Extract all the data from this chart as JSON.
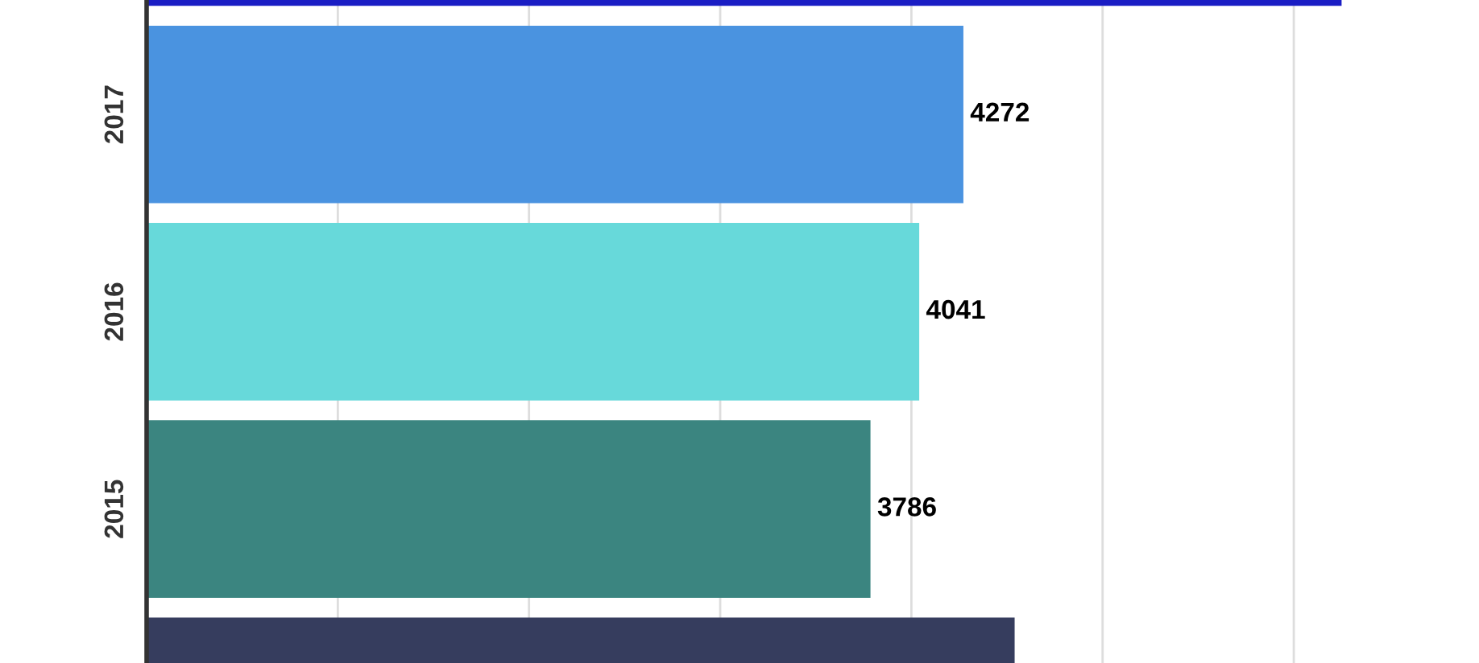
{
  "chart_data": {
    "type": "bar",
    "orientation": "horizontal",
    "categories": [
      null,
      "2017",
      "2016",
      "2015",
      null
    ],
    "values": [
      6250,
      4272,
      4041,
      3786,
      4540
    ],
    "colors": [
      "#1a1dc4",
      "#4a93e0",
      "#67d9da",
      "#3b8580",
      "#363d5e"
    ],
    "value_labels": [
      null,
      "4272",
      "4041",
      "3786",
      null
    ],
    "ref_lines": [
      {
        "axis": "x",
        "value": 1000,
        "color": "#dddddd"
      },
      {
        "axis": "x",
        "value": 2000,
        "color": "#dddddd"
      },
      {
        "axis": "x",
        "value": 3000,
        "color": "#dddddd"
      },
      {
        "axis": "x",
        "value": 4000,
        "color": "#dddddd"
      },
      {
        "axis": "x",
        "value": 5000,
        "color": "#dddddd"
      },
      {
        "axis": "x",
        "value": 6000,
        "color": "#dddddd"
      }
    ],
    "legend": false
  }
}
